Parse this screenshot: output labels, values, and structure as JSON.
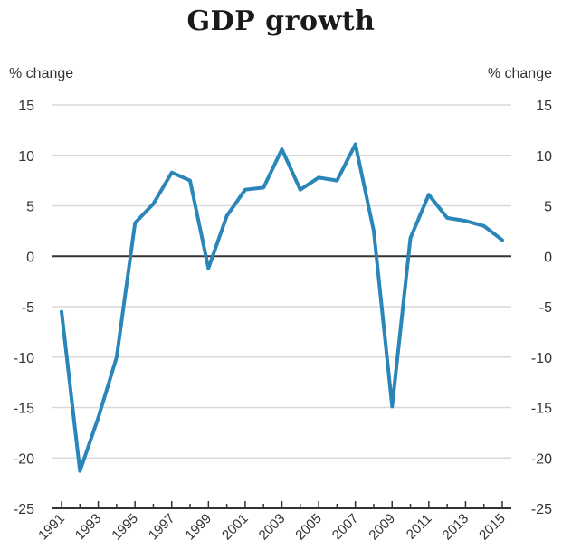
{
  "chart_data": {
    "type": "line",
    "title": "GDP growth",
    "ylabel_left": "% change",
    "ylabel_right": "% change",
    "ylim": [
      -25,
      15
    ],
    "yticks": [
      15,
      10,
      5,
      0,
      -5,
      -10,
      -15,
      -20,
      -25
    ],
    "xticks": [
      "1991",
      "1993",
      "1995",
      "1997",
      "1999",
      "2001",
      "2003",
      "2005",
      "2007",
      "2009",
      "2011",
      "2013",
      "2015"
    ],
    "grid": true,
    "colors": {
      "line": "#2a86b8",
      "grid": "#d9d9d9",
      "zero": "#333333"
    },
    "series": [
      {
        "x": [
          1991,
          1992,
          1993,
          1994,
          1995,
          1996,
          1997,
          1998,
          1999,
          2000,
          2001,
          2002,
          2003,
          2004,
          2005,
          2006,
          2007,
          2008,
          2009,
          2010,
          2011,
          2012,
          2013,
          2014,
          2015
        ],
        "values": [
          -5.5,
          -21.3,
          -16.0,
          -10.0,
          3.3,
          5.2,
          8.3,
          7.5,
          -1.2,
          4.0,
          6.6,
          6.8,
          10.6,
          6.6,
          7.8,
          7.5,
          11.1,
          2.5,
          -14.9,
          1.8,
          6.1,
          3.8,
          3.5,
          3.0,
          1.6
        ]
      }
    ]
  }
}
